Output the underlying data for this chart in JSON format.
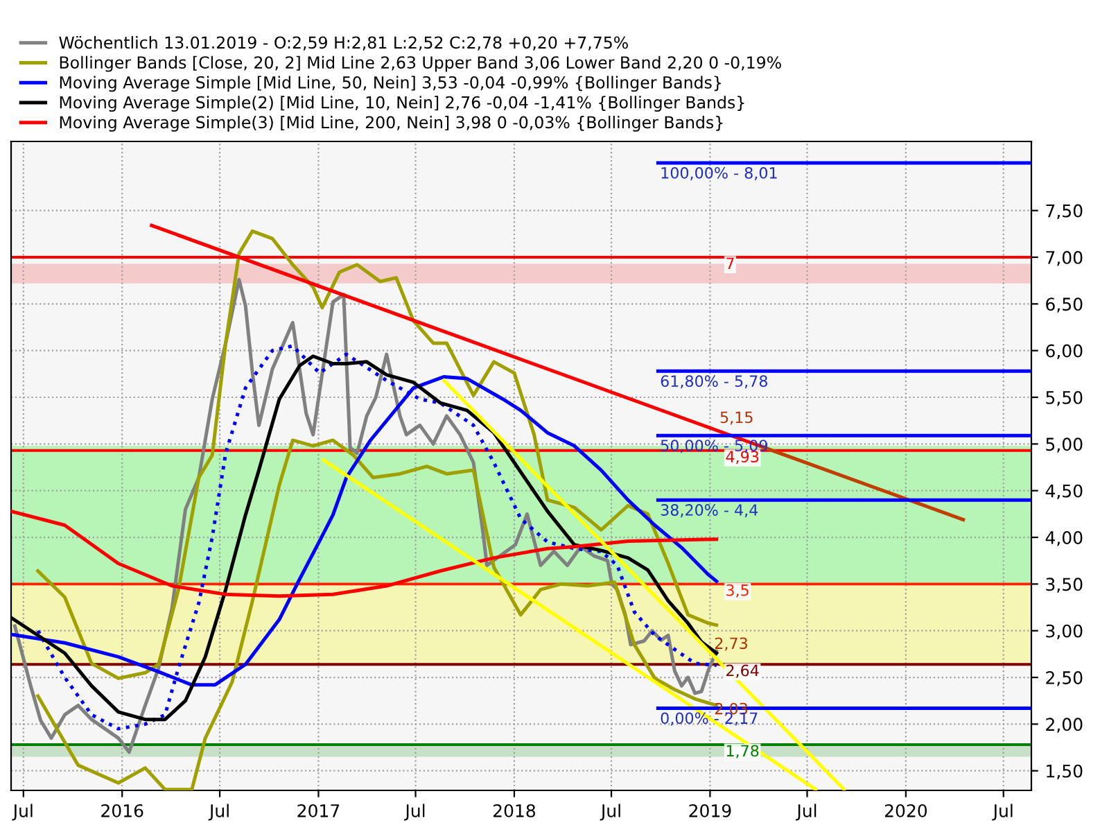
{
  "chart_data": {
    "type": "line",
    "legend": "top left",
    "grid": true,
    "marker": "none",
    "xlim": [
      "2015-06-08",
      "2020-08-22"
    ],
    "xticks": [
      {
        "value": "2015-07-01",
        "label": "Jul"
      },
      {
        "value": "2016-01-01",
        "label": "2016"
      },
      {
        "value": "2016-07-01",
        "label": "Jul"
      },
      {
        "value": "2017-01-01",
        "label": "2017"
      },
      {
        "value": "2017-07-01",
        "label": "Jul"
      },
      {
        "value": "2018-01-01",
        "label": "2018"
      },
      {
        "value": "2018-07-01",
        "label": "Jul"
      },
      {
        "value": "2019-01-01",
        "label": "2019"
      },
      {
        "value": "2019-07-01",
        "label": "Jul"
      },
      {
        "value": "2020-01-01",
        "label": "2020"
      },
      {
        "value": "2020-07-01",
        "label": "Jul"
      }
    ],
    "ylim": [
      1.29,
      8.24
    ],
    "yticks": [
      {
        "value": 1.5,
        "label": "1,50"
      },
      {
        "value": 2.0,
        "label": "2,00"
      },
      {
        "value": 2.5,
        "label": "2,50"
      },
      {
        "value": 3.0,
        "label": "3,00"
      },
      {
        "value": 3.5,
        "label": "3,50"
      },
      {
        "value": 4.0,
        "label": "4,00"
      },
      {
        "value": 4.5,
        "label": "4,50"
      },
      {
        "value": 5.0,
        "label": "5,00"
      },
      {
        "value": 5.5,
        "label": "5,50"
      },
      {
        "value": 6.0,
        "label": "6,00"
      },
      {
        "value": 6.5,
        "label": "6,50"
      },
      {
        "value": 7.0,
        "label": "7,00"
      },
      {
        "value": 7.5,
        "label": "7,50"
      }
    ],
    "bands": [
      {
        "axis": "y",
        "from": 6.72,
        "to": 6.93,
        "color": "#f4c2c2"
      },
      {
        "axis": "y",
        "from": 3.5,
        "to": 4.98,
        "color": "#aaf5aa"
      },
      {
        "axis": "y",
        "from": 2.64,
        "to": 3.5,
        "color": "#f5f5a8"
      },
      {
        "axis": "y",
        "from": 1.65,
        "to": 1.78,
        "color": "#c0dcc0"
      }
    ],
    "ref_lines": [
      {
        "axis": "y",
        "value": 7.0,
        "label": "7",
        "color": "#ff0000"
      },
      {
        "axis": "y",
        "value": 4.93,
        "label": "4,93",
        "color": "#ff0000"
      },
      {
        "axis": "y",
        "value": 3.5,
        "label": "3,5",
        "color": "#ff2000"
      },
      {
        "axis": "y",
        "value": 2.64,
        "label": "2,64",
        "color": "#800000"
      },
      {
        "axis": "y",
        "value": 1.78,
        "label": "1,78",
        "color": "#007f00"
      }
    ],
    "annotations": [
      {
        "text": "5,15",
        "x": "2019-01-15",
        "y": 5.15
      },
      {
        "text": "2,73",
        "x": "2019-01-05",
        "y": 2.73
      },
      {
        "text": "2,03",
        "x": "2019-01-05",
        "y": 2.03
      },
      {
        "text": "100,00% - 8,01",
        "x": "2018-09-26",
        "y": 8.01
      },
      {
        "text": "61,80% - 5,78",
        "x": "2018-09-26",
        "y": 5.78
      },
      {
        "text": "50,00% - 5,09",
        "x": "2018-09-26",
        "y": 5.09
      },
      {
        "text": "38,20% - 4,4",
        "x": "2018-09-26",
        "y": 4.4
      },
      {
        "text": "0,00% - 2,17",
        "x": "2018-09-26",
        "y": 2.17
      }
    ],
    "series": [
      {
        "name": "Wöchentlich 13.01.2019 - O:2,59 H:2,81 L:2,52 C:2,78 +0,20 +7,75%",
        "color": "#808080",
        "x": [
          "2015-06-15",
          "2015-07-15",
          "2015-08-02",
          "2015-08-22",
          "2015-09-16",
          "2015-10-11",
          "2015-11-05",
          "2015-11-30",
          "2015-12-25",
          "2016-01-14",
          "2016-02-13",
          "2016-03-09",
          "2016-04-03",
          "2016-04-28",
          "2016-05-23",
          "2016-06-17",
          "2016-07-12",
          "2016-08-06",
          "2016-08-18",
          "2016-08-31",
          "2016-09-12",
          "2016-10-07",
          "2016-11-14",
          "2016-12-09",
          "2016-12-22",
          "2017-01-28",
          "2017-02-17",
          "2017-03-01",
          "2017-03-14",
          "2017-04-01",
          "2017-04-18",
          "2017-05-08",
          "2017-06-02",
          "2017-06-14",
          "2017-07-09",
          "2017-08-03",
          "2017-08-28",
          "2017-09-22",
          "2017-10-17",
          "2017-11-04",
          "2017-11-11",
          "2018-01-03",
          "2018-01-25",
          "2018-02-19",
          "2018-03-16",
          "2018-04-10",
          "2018-05-05",
          "2018-05-30",
          "2018-06-24",
          "2018-07-02",
          "2018-07-12",
          "2018-07-27",
          "2018-08-06",
          "2018-08-31",
          "2018-09-15",
          "2018-10-02",
          "2018-10-15",
          "2018-10-27",
          "2018-11-09",
          "2018-11-21",
          "2018-12-04",
          "2018-12-16",
          "2018-12-29",
          "2019-01-13"
        ],
        "values": [
          3.05,
          2.4,
          2.04,
          1.85,
          2.1,
          2.2,
          2.05,
          1.95,
          1.85,
          1.7,
          2.2,
          2.6,
          3.24,
          4.3,
          4.64,
          5.48,
          6.08,
          6.76,
          6.48,
          5.76,
          5.2,
          5.8,
          6.3,
          5.33,
          5.1,
          6.52,
          6.6,
          4.96,
          4.9,
          5.3,
          5.5,
          5.96,
          5.3,
          5.1,
          5.2,
          5.0,
          5.3,
          5.1,
          4.8,
          4.04,
          3.7,
          3.92,
          4.25,
          3.7,
          3.85,
          3.7,
          3.9,
          3.8,
          3.75,
          3.5,
          3.44,
          3.17,
          2.85,
          2.89,
          3.0,
          2.9,
          2.95,
          2.57,
          2.41,
          2.5,
          2.33,
          2.35,
          2.58,
          2.78
        ]
      },
      {
        "name": "Bollinger Bands [Close, 20, 2] Mid Line 2,63 Upper Band 3,06 Lower Band 2,20 0 -0,19%",
        "color": "#a0a000",
        "x": [
          "2015-07-28",
          "2015-09-16",
          "2015-11-05",
          "2015-12-25",
          "2016-02-13",
          "2016-03-09",
          "2016-04-15",
          "2016-05-23",
          "2016-06-17",
          "2016-07-12",
          "2016-08-06",
          "2016-08-31",
          "2016-10-07",
          "2016-11-14",
          "2016-12-22",
          "2017-01-08",
          "2017-02-09",
          "2017-03-14",
          "2017-04-26",
          "2017-05-26",
          "2017-06-27",
          "2017-08-03",
          "2017-08-28",
          "2017-10-17",
          "2017-11-24",
          "2018-01-01",
          "2018-02-07",
          "2018-03-04",
          "2018-04-23",
          "2018-06-12",
          "2018-08-01",
          "2018-09-07",
          "2018-10-15",
          "2018-11-21",
          "2018-12-29",
          "2019-01-13"
        ],
        "values": [
          3.64,
          3.36,
          2.65,
          2.49,
          2.55,
          2.64,
          3.44,
          4.64,
          4.88,
          6.08,
          7.04,
          7.28,
          7.2,
          6.92,
          6.68,
          6.46,
          6.84,
          6.92,
          6.74,
          6.78,
          6.32,
          6.08,
          6.08,
          5.52,
          5.88,
          5.76,
          5.1,
          4.4,
          4.32,
          4.08,
          4.34,
          4.25,
          3.72,
          3.17,
          3.08,
          3.06
        ]
      },
      {
        "color": "#a0a000",
        "x": [
          "2015-07-28",
          "2015-10-11",
          "2015-12-25",
          "2016-02-13",
          "2016-03-21",
          "2016-05-10",
          "2016-06-04",
          "2016-07-24",
          "2016-08-31",
          "2016-10-20",
          "2016-11-14",
          "2016-12-22",
          "2017-01-28",
          "2017-03-07",
          "2017-04-13",
          "2017-06-02",
          "2017-07-22",
          "2017-08-28",
          "2017-10-17",
          "2017-11-24",
          "2018-01-13",
          "2018-02-19",
          "2018-03-29",
          "2018-05-18",
          "2018-07-07",
          "2018-08-13",
          "2018-09-20",
          "2018-10-27",
          "2018-12-04",
          "2019-01-13"
        ],
        "values": [
          2.3,
          1.56,
          1.37,
          1.53,
          1.3,
          1.3,
          1.85,
          2.45,
          3.32,
          4.56,
          5.04,
          4.98,
          5.04,
          4.88,
          4.64,
          4.68,
          4.76,
          4.68,
          4.72,
          3.68,
          3.17,
          3.44,
          3.5,
          3.48,
          3.52,
          2.85,
          2.49,
          2.37,
          2.27,
          2.2
        ]
      },
      {
        "color": "#0000ff",
        "line_style": "dotted",
        "x": [
          "2015-07-28",
          "2015-09-16",
          "2015-11-05",
          "2015-12-25",
          "2016-02-13",
          "2016-03-21",
          "2016-04-15",
          "2016-05-23",
          "2016-06-17",
          "2016-07-12",
          "2016-08-18",
          "2016-10-07",
          "2016-11-14",
          "2017-01-03",
          "2017-02-22",
          "2017-05-08",
          "2017-07-09",
          "2017-08-16",
          "2017-10-17",
          "2017-11-24",
          "2018-01-13",
          "2018-03-04",
          "2018-04-23",
          "2018-06-12",
          "2018-07-12",
          "2018-08-13",
          "2018-09-20",
          "2018-10-27",
          "2018-12-04",
          "2019-01-13"
        ],
        "values": [
          3.0,
          2.5,
          2.1,
          1.95,
          2.0,
          2.1,
          2.6,
          3.3,
          4.0,
          4.9,
          5.6,
          6.0,
          6.05,
          5.76,
          5.96,
          5.68,
          5.48,
          5.44,
          5.2,
          4.8,
          4.2,
          3.95,
          3.88,
          3.85,
          3.7,
          3.2,
          2.95,
          2.8,
          2.65,
          2.63
        ]
      },
      {
        "name": "Moving Average Simple [Mid Line, 50, Nein] 3,53 -0,04 -0,99% {Bollinger Bands}",
        "color": "#0000ff",
        "x": [
          "2015-06-08",
          "2015-09-16",
          "2015-12-25",
          "2016-03-09",
          "2016-05-10",
          "2016-06-22",
          "2016-08-18",
          "2016-10-20",
          "2016-11-24",
          "2017-01-03",
          "2017-01-28",
          "2017-02-22",
          "2017-04-08",
          "2017-06-27",
          "2017-08-23",
          "2017-10-05",
          "2017-12-11",
          "2018-01-13",
          "2018-03-04",
          "2018-04-23",
          "2018-06-12",
          "2018-08-01",
          "2018-09-20",
          "2018-11-09",
          "2018-12-29",
          "2019-01-13"
        ],
        "values": [
          2.96,
          2.87,
          2.72,
          2.56,
          2.42,
          2.42,
          2.64,
          3.12,
          3.52,
          3.96,
          4.24,
          4.64,
          5.04,
          5.6,
          5.72,
          5.7,
          5.48,
          5.36,
          5.12,
          4.98,
          4.72,
          4.4,
          4.13,
          3.89,
          3.6,
          3.53
        ]
      },
      {
        "name": "Moving Average Simple(2) [Mid Line, 10, Nein] 2,76 -0,04 -1,41% {Bollinger Bands}",
        "color": "#000000",
        "x": [
          "2015-06-08",
          "2015-09-16",
          "2015-11-05",
          "2015-12-25",
          "2016-02-13",
          "2016-03-21",
          "2016-04-28",
          "2016-06-04",
          "2016-07-12",
          "2016-08-18",
          "2016-09-12",
          "2016-10-20",
          "2016-11-27",
          "2016-12-22",
          "2017-01-28",
          "2017-02-22",
          "2017-04-01",
          "2017-05-08",
          "2017-06-27",
          "2017-08-16",
          "2017-10-05",
          "2017-11-24",
          "2018-01-13",
          "2018-03-04",
          "2018-04-23",
          "2018-06-12",
          "2018-08-01",
          "2018-09-07",
          "2018-10-15",
          "2018-11-21",
          "2018-12-16",
          "2019-01-13"
        ],
        "values": [
          3.14,
          2.76,
          2.41,
          2.13,
          2.05,
          2.05,
          2.25,
          2.72,
          3.44,
          4.24,
          4.72,
          5.48,
          5.84,
          5.94,
          5.86,
          5.86,
          5.88,
          5.74,
          5.66,
          5.44,
          5.36,
          5.12,
          4.7,
          4.28,
          3.92,
          3.86,
          3.78,
          3.65,
          3.32,
          3.08,
          2.88,
          2.76
        ]
      },
      {
        "name": "Moving Average Simple(3) [Mid Line, 200, Nein] 3,98 0 -0,03% {Bollinger Bands}",
        "color": "#ff0000",
        "x": [
          "2015-06-08",
          "2015-09-16",
          "2015-12-25",
          "2016-04-03",
          "2016-07-12",
          "2016-10-20",
          "2017-01-28",
          "2017-05-08",
          "2017-08-16",
          "2017-11-24",
          "2018-03-04",
          "2018-04-23",
          "2018-08-01",
          "2019-01-13"
        ],
        "values": [
          4.28,
          4.13,
          3.72,
          3.48,
          3.39,
          3.37,
          3.39,
          3.48,
          3.64,
          3.78,
          3.88,
          3.9,
          3.96,
          3.98
        ]
      },
      {
        "color": "#ff0000",
        "x": [
          "2016-02-25",
          "2019-04-08"
        ],
        "values": [
          7.34,
          4.97
        ]
      },
      {
        "color": "#c04000",
        "x": [
          "2019-04-08",
          "2020-04-17"
        ],
        "values": [
          4.97,
          4.19
        ]
      },
      {
        "color": "#ffff00",
        "x": [
          "2017-01-10",
          "2019-07-17"
        ],
        "values": [
          4.83,
          1.3
        ]
      },
      {
        "color": "#ffff00",
        "x": [
          "2017-08-23",
          "2019-09-08"
        ],
        "values": [
          5.68,
          1.3
        ]
      },
      {
        "color": "#0000ff",
        "x": [
          "2018-09-26",
          "2020-08-22"
        ],
        "values": [
          8.01,
          8.01
        ]
      },
      {
        "color": "#0000ff",
        "x": [
          "2018-09-26",
          "2020-08-22"
        ],
        "values": [
          5.78,
          5.78
        ]
      },
      {
        "color": "#0000ff",
        "x": [
          "2018-09-26",
          "2020-08-22"
        ],
        "values": [
          5.09,
          5.09
        ]
      },
      {
        "color": "#0000ff",
        "x": [
          "2018-09-26",
          "2020-08-22"
        ],
        "values": [
          4.4,
          4.4
        ]
      },
      {
        "color": "#0000ff",
        "x": [
          "2018-09-26",
          "2020-08-22"
        ],
        "values": [
          2.17,
          2.17
        ]
      }
    ]
  }
}
